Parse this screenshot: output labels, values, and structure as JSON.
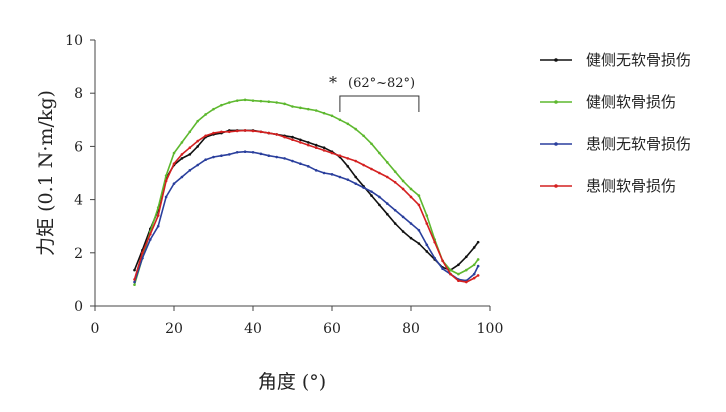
{
  "chart_data": {
    "type": "line",
    "title": "",
    "xlabel": "角度 (°)",
    "ylabel": "力矩 (0.1 N·m/kg)",
    "xlim": [
      0,
      100
    ],
    "ylim": [
      0,
      10
    ],
    "xticks": [
      "0",
      "20",
      "40",
      "60",
      "80",
      "100"
    ],
    "yticks": [
      "0",
      "2",
      "4",
      "6",
      "8",
      "10"
    ],
    "grid": false,
    "legend_position": "right",
    "annotation": {
      "star": "*",
      "text": "(62°~82°)",
      "range": [
        62,
        82
      ]
    },
    "series": [
      {
        "name": "健侧无软骨损伤",
        "color": "#111111",
        "x": [
          10,
          12,
          14,
          16,
          18,
          20,
          22,
          24,
          26,
          28,
          30,
          32,
          34,
          36,
          38,
          40,
          42,
          44,
          46,
          48,
          50,
          52,
          54,
          56,
          58,
          60,
          62,
          64,
          66,
          68,
          70,
          72,
          74,
          76,
          78,
          80,
          82,
          84,
          86,
          88,
          90,
          92,
          94,
          96,
          97
        ],
        "y": [
          1.35,
          2.1,
          2.9,
          3.6,
          4.8,
          5.3,
          5.55,
          5.7,
          6.0,
          6.35,
          6.45,
          6.5,
          6.6,
          6.6,
          6.6,
          6.6,
          6.55,
          6.5,
          6.45,
          6.4,
          6.35,
          6.25,
          6.15,
          6.05,
          5.95,
          5.8,
          5.6,
          5.25,
          4.85,
          4.5,
          4.15,
          3.8,
          3.45,
          3.1,
          2.8,
          2.55,
          2.35,
          2.05,
          1.75,
          1.45,
          1.35,
          1.55,
          1.85,
          2.2,
          2.4
        ]
      },
      {
        "name": "健侧软骨损伤",
        "color": "#5db82e",
        "x": [
          10,
          12,
          14,
          16,
          18,
          20,
          22,
          24,
          26,
          28,
          30,
          32,
          34,
          36,
          38,
          40,
          42,
          44,
          46,
          48,
          50,
          52,
          54,
          56,
          58,
          60,
          62,
          64,
          66,
          68,
          70,
          72,
          74,
          76,
          78,
          80,
          82,
          84,
          86,
          88,
          90,
          92,
          94,
          96,
          97
        ],
        "y": [
          0.8,
          1.8,
          2.8,
          3.7,
          4.9,
          5.75,
          6.15,
          6.55,
          6.95,
          7.2,
          7.4,
          7.55,
          7.65,
          7.72,
          7.75,
          7.72,
          7.7,
          7.68,
          7.65,
          7.6,
          7.5,
          7.45,
          7.4,
          7.35,
          7.25,
          7.15,
          7.0,
          6.85,
          6.65,
          6.4,
          6.1,
          5.75,
          5.4,
          5.05,
          4.7,
          4.4,
          4.15,
          3.4,
          2.5,
          1.7,
          1.35,
          1.2,
          1.35,
          1.55,
          1.75
        ]
      },
      {
        "name": "患侧无软骨损伤",
        "color": "#2a3f9d",
        "x": [
          10,
          12,
          14,
          16,
          18,
          20,
          22,
          24,
          26,
          28,
          30,
          32,
          34,
          36,
          38,
          40,
          42,
          44,
          46,
          48,
          50,
          52,
          54,
          56,
          58,
          60,
          62,
          64,
          66,
          68,
          70,
          72,
          74,
          76,
          78,
          80,
          82,
          84,
          86,
          88,
          90,
          92,
          94,
          96,
          97
        ],
        "y": [
          0.9,
          1.8,
          2.5,
          3.0,
          4.1,
          4.6,
          4.85,
          5.1,
          5.3,
          5.5,
          5.6,
          5.65,
          5.7,
          5.78,
          5.8,
          5.78,
          5.72,
          5.65,
          5.6,
          5.55,
          5.45,
          5.35,
          5.25,
          5.1,
          5.0,
          4.95,
          4.85,
          4.75,
          4.6,
          4.45,
          4.3,
          4.1,
          3.85,
          3.6,
          3.35,
          3.1,
          2.85,
          2.3,
          1.8,
          1.4,
          1.2,
          1.0,
          0.95,
          1.2,
          1.5
        ]
      },
      {
        "name": "患侧软骨损伤",
        "color": "#d42020",
        "x": [
          10,
          12,
          14,
          16,
          18,
          20,
          22,
          24,
          26,
          28,
          30,
          32,
          34,
          36,
          38,
          40,
          42,
          44,
          46,
          48,
          50,
          52,
          54,
          56,
          58,
          60,
          62,
          64,
          66,
          68,
          70,
          72,
          74,
          76,
          78,
          80,
          82,
          84,
          86,
          88,
          90,
          92,
          94,
          96,
          97
        ],
        "y": [
          1.0,
          2.0,
          2.7,
          3.4,
          4.7,
          5.35,
          5.7,
          5.95,
          6.2,
          6.4,
          6.5,
          6.55,
          6.55,
          6.58,
          6.6,
          6.58,
          6.55,
          6.5,
          6.45,
          6.35,
          6.25,
          6.15,
          6.05,
          5.95,
          5.85,
          5.75,
          5.65,
          5.55,
          5.45,
          5.3,
          5.15,
          5.0,
          4.85,
          4.65,
          4.4,
          4.1,
          3.8,
          3.1,
          2.4,
          1.7,
          1.2,
          0.95,
          0.9,
          1.05,
          1.15
        ]
      }
    ]
  }
}
